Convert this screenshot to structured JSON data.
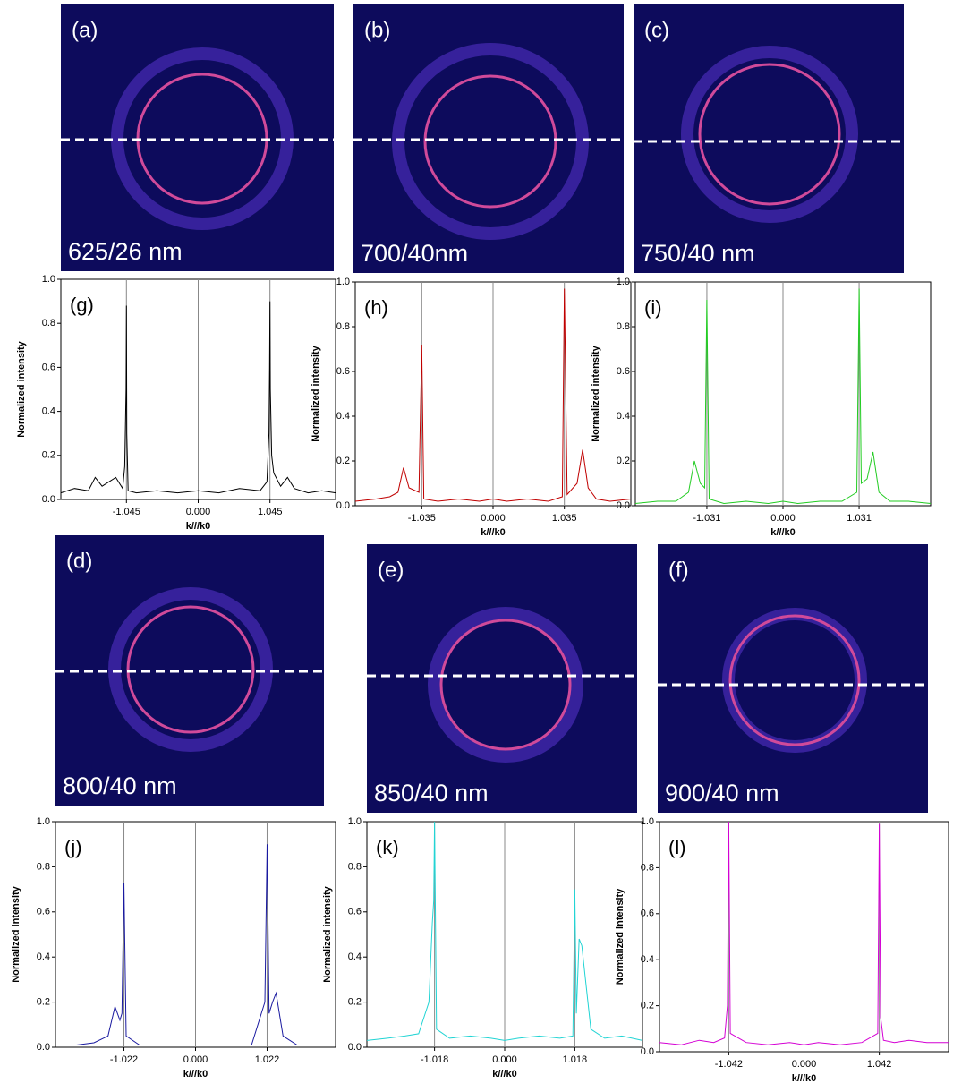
{
  "images": [
    {
      "label": "(a)",
      "caption": "625/26 nm"
    },
    {
      "label": "(b)",
      "caption": "700/40nm"
    },
    {
      "label": "(c)",
      "caption": "750/40 nm"
    },
    {
      "label": "(d)",
      "caption": "800/40 nm"
    },
    {
      "label": "(e)",
      "caption": "850/40 nm"
    },
    {
      "label": "(f)",
      "caption": "900/40 nm"
    }
  ],
  "chart_data": [
    {
      "type": "line",
      "label": "(g)",
      "xlabel": "k///k0",
      "ylabel": "Normalized intensity",
      "x": [
        -2,
        -1.8,
        -1.6,
        -1.5,
        -1.4,
        -1.3,
        -1.2,
        -1.1,
        -1.07,
        -1.05,
        -1.045,
        -1.04,
        -1.02,
        -0.9,
        -0.6,
        -0.3,
        0,
        0.3,
        0.6,
        0.9,
        1.0,
        1.03,
        1.04,
        1.045,
        1.05,
        1.07,
        1.1,
        1.2,
        1.3,
        1.4,
        1.5,
        1.6,
        1.8,
        2
      ],
      "series": [
        {
          "color": "#000000",
          "values": [
            0.03,
            0.05,
            0.04,
            0.1,
            0.06,
            0.08,
            0.1,
            0.05,
            0.15,
            0.5,
            0.88,
            0.3,
            0.04,
            0.03,
            0.04,
            0.03,
            0.04,
            0.03,
            0.05,
            0.04,
            0.08,
            0.3,
            0.6,
            0.9,
            0.5,
            0.2,
            0.12,
            0.06,
            0.1,
            0.05,
            0.04,
            0.03,
            0.04,
            0.03
          ]
        }
      ],
      "xlim": [
        -2,
        2
      ],
      "xticks": [
        -1.045,
        {
          "value": 0,
          "label": "0.000"
        },
        1.045
      ],
      "ylim": [
        0,
        1
      ],
      "yticks": [
        {
          "value": 0,
          "label": "0.0"
        },
        0.2,
        0.4,
        0.6,
        0.8,
        {
          "value": 1,
          "label": "1.0"
        }
      ],
      "grid": true
    },
    {
      "type": "line",
      "label": "(h)",
      "xlabel": "k///k0",
      "ylabel": "Normalized intensity",
      "x": [
        -2,
        -1.7,
        -1.5,
        -1.38,
        -1.3,
        -1.22,
        -1.075,
        -1.035,
        -1.005,
        -0.8,
        -0.5,
        -0.2,
        0,
        0.2,
        0.5,
        0.8,
        1.005,
        1.035,
        1.075,
        1.22,
        1.3,
        1.38,
        1.5,
        1.7,
        2
      ],
      "series": [
        {
          "color": "#c00000",
          "values": [
            0.02,
            0.03,
            0.04,
            0.06,
            0.17,
            0.08,
            0.06,
            0.72,
            0.03,
            0.02,
            0.03,
            0.02,
            0.03,
            0.02,
            0.03,
            0.02,
            0.04,
            0.97,
            0.05,
            0.1,
            0.25,
            0.08,
            0.03,
            0.02,
            0.03
          ]
        }
      ],
      "xlim": [
        -2,
        2
      ],
      "xticks": [
        -1.035,
        {
          "value": 0,
          "label": "0.000"
        },
        1.035
      ],
      "ylim": [
        0,
        1
      ],
      "yticks": [
        {
          "value": 0,
          "label": "0.0"
        },
        0.2,
        0.4,
        0.6,
        0.8,
        {
          "value": 1,
          "label": "1.0"
        }
      ],
      "grid": true
    },
    {
      "type": "line",
      "label": "(i)",
      "xlabel": "k///k0",
      "ylabel": "Normalized intensity",
      "x": [
        -2,
        -1.7,
        -1.45,
        -1.28,
        -1.2,
        -1.12,
        -1.06,
        -1.031,
        -1.0,
        -0.8,
        -0.5,
        -0.2,
        0,
        0.2,
        0.5,
        0.8,
        1.0,
        1.031,
        1.06,
        1.14,
        1.22,
        1.3,
        1.45,
        1.7,
        2
      ],
      "series": [
        {
          "color": "#22cc22",
          "values": [
            0.01,
            0.02,
            0.02,
            0.06,
            0.2,
            0.1,
            0.08,
            0.92,
            0.03,
            0.01,
            0.02,
            0.01,
            0.02,
            0.01,
            0.02,
            0.02,
            0.06,
            0.97,
            0.1,
            0.12,
            0.24,
            0.06,
            0.02,
            0.02,
            0.01
          ]
        }
      ],
      "xlim": [
        -2,
        2
      ],
      "xticks": [
        -1.031,
        {
          "value": 0,
          "label": "0.000"
        },
        1.031
      ],
      "ylim": [
        0,
        1
      ],
      "yticks": [
        {
          "value": 0,
          "label": "0.0"
        },
        0.2,
        0.4,
        0.6,
        0.8,
        {
          "value": 1,
          "label": "1.0"
        }
      ],
      "grid": true
    },
    {
      "type": "line",
      "label": "(j)",
      "xlabel": "k///k0",
      "ylabel": "Normalized intensity",
      "x": [
        -2,
        -1.7,
        -1.45,
        -1.25,
        -1.15,
        -1.08,
        -1.05,
        -1.022,
        -0.99,
        -0.8,
        -0.5,
        -0.2,
        0,
        0.2,
        0.5,
        0.8,
        0.99,
        1.022,
        1.05,
        1.1,
        1.15,
        1.25,
        1.45,
        1.7,
        2
      ],
      "series": [
        {
          "color": "#1a1aa0",
          "values": [
            0.01,
            0.01,
            0.02,
            0.05,
            0.18,
            0.12,
            0.15,
            0.73,
            0.05,
            0.01,
            0.01,
            0.01,
            0.01,
            0.01,
            0.01,
            0.01,
            0.2,
            0.9,
            0.15,
            0.2,
            0.24,
            0.05,
            0.01,
            0.01,
            0.01
          ]
        }
      ],
      "xlim": [
        -2,
        2
      ],
      "xticks": [
        -1.022,
        {
          "value": 0,
          "label": "0.000"
        },
        1.022
      ],
      "ylim": [
        0,
        1
      ],
      "yticks": [
        {
          "value": 0,
          "label": "0.0"
        },
        0.2,
        0.4,
        0.6,
        0.8,
        {
          "value": 1,
          "label": "1.0"
        }
      ],
      "grid": true
    },
    {
      "type": "line",
      "label": "(k)",
      "xlabel": "k///k0",
      "ylabel": "Normalized intensity",
      "x": [
        -2,
        -1.7,
        -1.45,
        -1.25,
        -1.1,
        -1.05,
        -1.03,
        -1.018,
        -0.99,
        -0.8,
        -0.5,
        -0.2,
        0,
        0.2,
        0.5,
        0.8,
        0.99,
        1.018,
        1.04,
        1.08,
        1.12,
        1.25,
        1.45,
        1.7,
        2
      ],
      "series": [
        {
          "color": "#22d4d4",
          "values": [
            0.03,
            0.04,
            0.05,
            0.06,
            0.2,
            0.55,
            0.65,
            1.0,
            0.08,
            0.04,
            0.05,
            0.04,
            0.03,
            0.04,
            0.05,
            0.04,
            0.05,
            0.7,
            0.15,
            0.48,
            0.45,
            0.08,
            0.04,
            0.05,
            0.03
          ]
        }
      ],
      "xlim": [
        -2,
        2
      ],
      "xticks": [
        -1.018,
        {
          "value": 0,
          "label": "0.000"
        },
        1.018
      ],
      "ylim": [
        0,
        1
      ],
      "yticks": [
        {
          "value": 0,
          "label": "0.0"
        },
        0.2,
        0.4,
        0.6,
        0.8,
        {
          "value": 1,
          "label": "1.0"
        }
      ],
      "grid": true
    },
    {
      "type": "line",
      "label": "(l)",
      "xlabel": "k///k0",
      "ylabel": "Normalized intensity",
      "x": [
        -2,
        -1.7,
        -1.45,
        -1.25,
        -1.1,
        -1.06,
        -1.042,
        -1.02,
        -0.8,
        -0.5,
        -0.2,
        0,
        0.2,
        0.5,
        0.8,
        1.02,
        1.042,
        1.06,
        1.1,
        1.25,
        1.45,
        1.7,
        2
      ],
      "series": [
        {
          "color": "#d400d4",
          "values": [
            0.04,
            0.03,
            0.05,
            0.04,
            0.06,
            0.2,
            1.0,
            0.08,
            0.04,
            0.03,
            0.04,
            0.03,
            0.04,
            0.03,
            0.04,
            0.08,
            0.99,
            0.15,
            0.05,
            0.04,
            0.05,
            0.04,
            0.04
          ]
        }
      ],
      "xlim": [
        -2,
        2
      ],
      "xticks": [
        -1.042,
        {
          "value": 0,
          "label": "0.000"
        },
        1.042
      ],
      "ylim": [
        0,
        1
      ],
      "yticks": [
        {
          "value": 0,
          "label": "0.0"
        },
        0.2,
        0.4,
        0.6,
        0.8,
        {
          "value": 1,
          "label": "1.0"
        }
      ],
      "grid": true
    }
  ]
}
